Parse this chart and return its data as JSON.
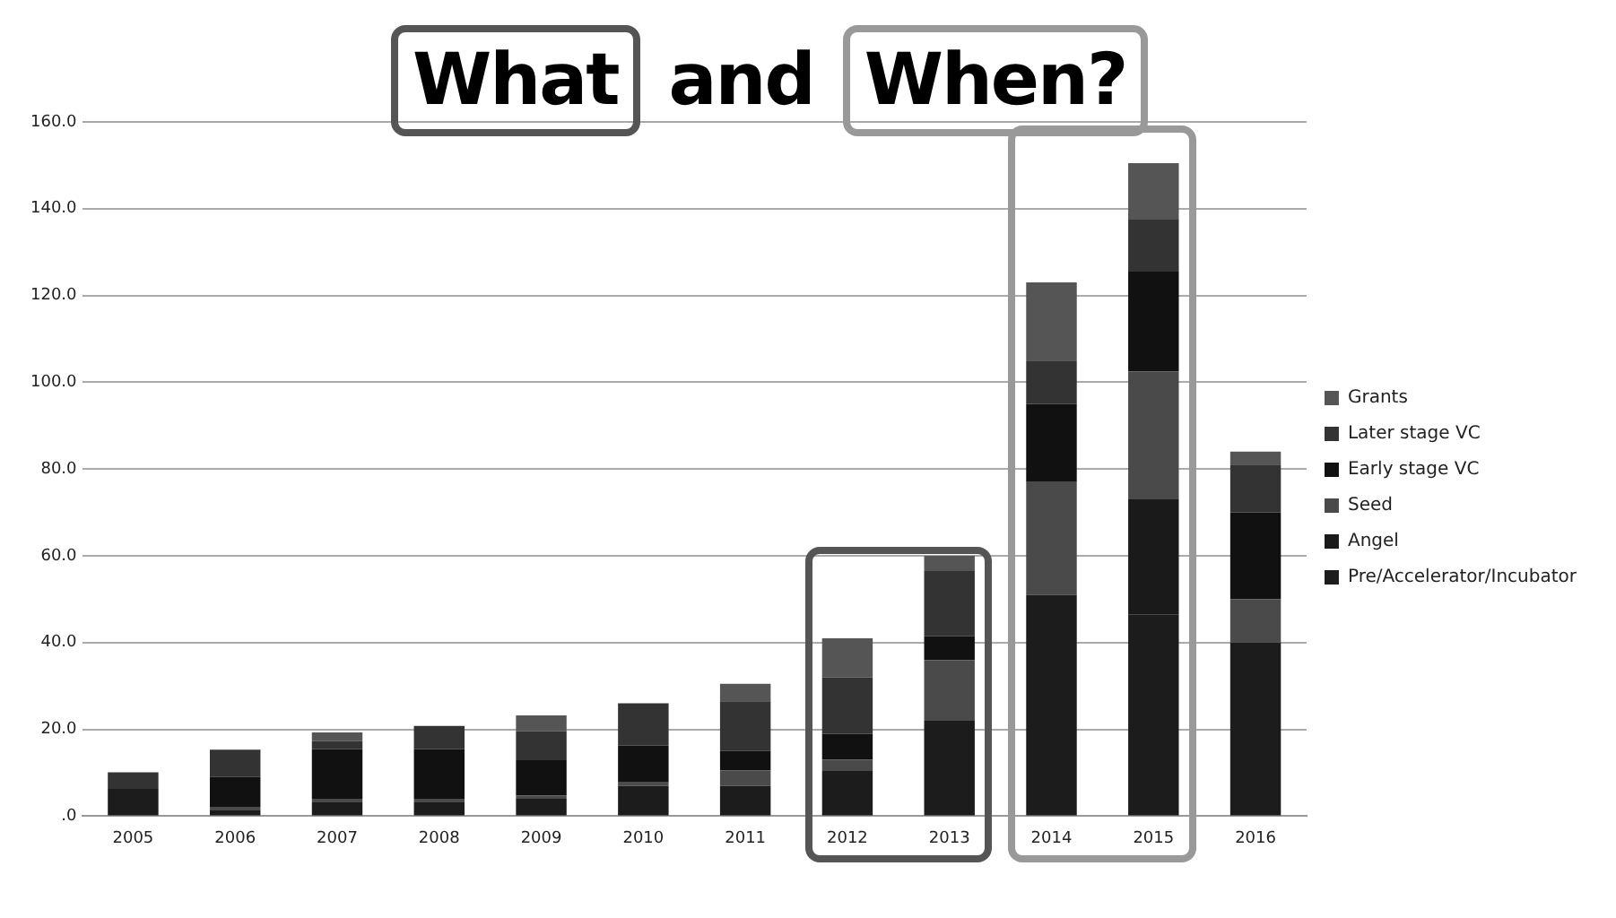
{
  "chart_data": {
    "type": "bar",
    "title": "What and When?",
    "stacked": true,
    "categories": [
      "2005",
      "2006",
      "2007",
      "2008",
      "2009",
      "2010",
      "2011",
      "2012",
      "2013",
      "2014",
      "2015",
      "2016"
    ],
    "series": [
      {
        "name": "Pre/Accelerator/Incubator",
        "color": "#1c1c1c",
        "values": [
          6.3,
          1.5,
          3.2,
          3.2,
          4,
          7,
          7,
          10.4,
          22,
          51,
          46.5,
          40
        ]
      },
      {
        "name": "Angel",
        "color": "#1a1a1a",
        "values": [
          0,
          0,
          0,
          0,
          0,
          0,
          0,
          0,
          0,
          0,
          26.5,
          0
        ]
      },
      {
        "name": "Seed",
        "color": "#4a4a4a",
        "values": [
          0,
          0.5,
          0.8,
          0.8,
          0.8,
          0.8,
          3.5,
          2.6,
          14,
          26,
          29.5,
          10
        ]
      },
      {
        "name": "Early stage VC",
        "color": "#111111",
        "values": [
          0,
          7,
          11.5,
          11.5,
          8.1,
          8.5,
          4.5,
          6,
          5.5,
          18,
          23,
          20
        ]
      },
      {
        "name": "Later stage VC",
        "color": "#333333",
        "values": [
          3.8,
          6.3,
          1.8,
          5.3,
          6.7,
          9.7,
          11.5,
          13,
          15,
          10,
          12,
          11
        ]
      },
      {
        "name": "Grants",
        "color": "#555555",
        "values": [
          0,
          0,
          2,
          0,
          3.6,
          0,
          4,
          9,
          3.5,
          18,
          13,
          3
        ]
      }
    ],
    "ylim": [
      0,
      160
    ],
    "yticks": [
      {
        "value": 0,
        "label": ".0"
      },
      {
        "value": 20,
        "label": "20.0"
      },
      {
        "value": 40,
        "label": "40.0"
      },
      {
        "value": 60,
        "label": "60.0"
      },
      {
        "value": 80,
        "label": "80.0"
      },
      {
        "value": 100,
        "label": "100.0"
      },
      {
        "value": 120,
        "label": "120.0"
      },
      {
        "value": 140,
        "label": "140.0"
      },
      {
        "value": 160,
        "label": "160.0"
      }
    ],
    "grid": "y",
    "legend": "right"
  }
}
